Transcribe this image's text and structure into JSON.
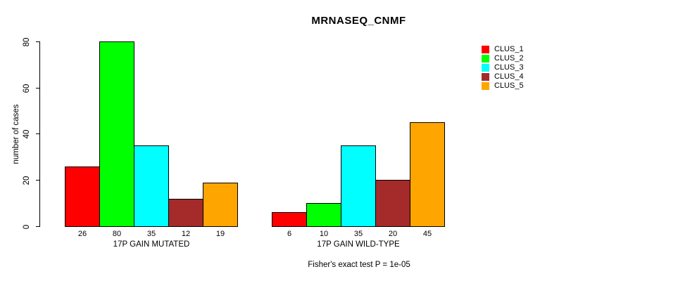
{
  "chart_data": {
    "type": "bar",
    "title": "MRNASEQ_CNMF",
    "ylabel": "number of cases",
    "sub": "Fisher's exact test P = 1e-05",
    "ylim": [
      0,
      80
    ],
    "yticks": [
      0,
      20,
      40,
      60,
      80
    ],
    "grid": false,
    "legend_position": "right",
    "bar_value_labels_shown": true,
    "categories": [
      "17P GAIN MUTATED",
      "17P GAIN WILD-TYPE"
    ],
    "series": [
      {
        "name": "CLUS_1",
        "color": "#FF0000",
        "values": [
          26,
          6
        ]
      },
      {
        "name": "CLUS_2",
        "color": "#00FF00",
        "values": [
          80,
          10
        ]
      },
      {
        "name": "CLUS_3",
        "color": "#00FFFF",
        "values": [
          35,
          35
        ]
      },
      {
        "name": "CLUS_4",
        "color": "#A52A2A",
        "values": [
          12,
          20
        ]
      },
      {
        "name": "CLUS_5",
        "color": "#FFA500",
        "values": [
          19,
          45
        ]
      }
    ]
  },
  "colors": {
    "background": "#FFFFFF",
    "axis": "#000000",
    "text": "#000000"
  }
}
